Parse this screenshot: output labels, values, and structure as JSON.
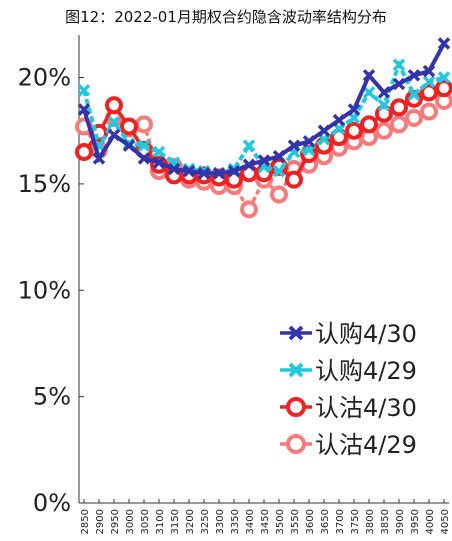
{
  "chart_data": {
    "type": "line",
    "title": "图12：2022-01月期权合约隐含波动率结构分布",
    "xlabel": "",
    "ylabel": "",
    "x": [
      "2850",
      "2900",
      "2950",
      "3000",
      "3050",
      "3100",
      "3150",
      "3200",
      "3250",
      "3300",
      "3350",
      "3400",
      "3450",
      "3500",
      "3550",
      "3600",
      "3650",
      "3700",
      "3750",
      "3800",
      "3850",
      "3900",
      "3950",
      "4000",
      "4050"
    ],
    "ylim": [
      0,
      22
    ],
    "yticks": [
      0,
      5,
      10,
      15,
      20
    ],
    "ytick_labels": [
      "0%",
      "5%",
      "10%",
      "15%",
      "20%"
    ],
    "legend_position": "bottom-right",
    "series": [
      {
        "name": "认购4/30",
        "color": "#3333aa",
        "marker": "x",
        "values": [
          18.5,
          16.2,
          17.3,
          16.8,
          16.2,
          16.0,
          15.7,
          15.6,
          15.5,
          15.5,
          15.6,
          15.9,
          16.1,
          16.3,
          16.8,
          17.0,
          17.5,
          18.0,
          18.5,
          20.1,
          19.3,
          19.7,
          20.1,
          20.3,
          21.6
        ]
      },
      {
        "name": "认购4/29",
        "color": "#22c8dd",
        "marker": "x",
        "values": [
          19.4,
          16.8,
          17.9,
          16.9,
          16.8,
          16.5,
          16.0,
          15.7,
          15.6,
          15.5,
          15.7,
          16.8,
          15.8,
          15.6,
          16.5,
          16.6,
          17.1,
          17.6,
          18.1,
          19.3,
          18.7,
          20.6,
          19.2,
          19.8,
          20.0
        ]
      },
      {
        "name": "认沽4/30",
        "color": "#ee2222",
        "marker": "o",
        "values": [
          16.5,
          17.4,
          18.7,
          17.7,
          16.6,
          15.9,
          15.4,
          15.4,
          15.4,
          15.3,
          15.2,
          15.5,
          15.5,
          15.8,
          15.2,
          16.4,
          16.8,
          17.2,
          17.5,
          17.8,
          18.3,
          18.6,
          19.0,
          19.3,
          19.5
        ]
      },
      {
        "name": "认沽4/29",
        "color": "#f77b7b",
        "marker": "o",
        "values": [
          17.7,
          16.6,
          18.1,
          17.6,
          17.8,
          15.6,
          15.8,
          15.2,
          15.1,
          14.9,
          14.9,
          13.8,
          15.2,
          14.5,
          15.7,
          15.9,
          16.3,
          16.7,
          17.0,
          17.2,
          17.5,
          17.8,
          18.1,
          18.4,
          18.9
        ]
      }
    ]
  }
}
